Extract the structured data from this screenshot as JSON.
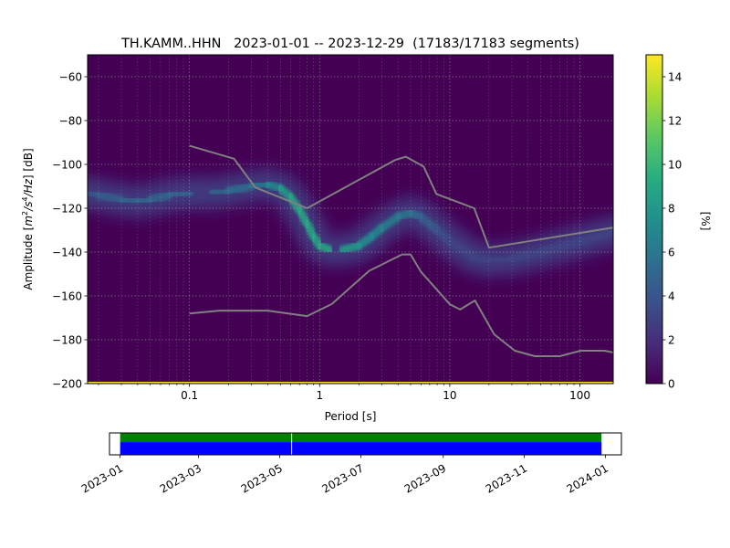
{
  "chart_data": [
    {
      "type": "heatmap",
      "title": "TH.KAMM..HHN   2023-01-01 -- 2023-12-29  (17183/17183 segments)",
      "xlabel": "Period [s]",
      "ylabel_parts": {
        "pre": "Amplitude [",
        "m": "m",
        "exp2": "2",
        "s": "/s",
        "exp4": "4",
        "hz": "/Hz",
        "post": "] [dB]"
      },
      "xscale": "log",
      "xlim": [
        0.0165,
        180
      ],
      "ylim": [
        -200,
        -50
      ],
      "x_ticks": [
        {
          "value": 0.1,
          "label": "0.1"
        },
        {
          "value": 1,
          "label": "1"
        },
        {
          "value": 10,
          "label": "10"
        },
        {
          "value": 100,
          "label": "100"
        }
      ],
      "y_ticks": [
        {
          "value": -60,
          "label": "−60"
        },
        {
          "value": -80,
          "label": "−80"
        },
        {
          "value": -100,
          "label": "−100"
        },
        {
          "value": -120,
          "label": "−120"
        },
        {
          "value": -140,
          "label": "−140"
        },
        {
          "value": -160,
          "label": "−160"
        },
        {
          "value": -180,
          "label": "−180"
        },
        {
          "value": -200,
          "label": "−200"
        }
      ],
      "grid": true,
      "colormap": "viridis",
      "colorbar": {
        "label": "[%]",
        "range": [
          0,
          15
        ],
        "ticks": [
          {
            "value": 0,
            "label": "0"
          },
          {
            "value": 2,
            "label": "2"
          },
          {
            "value": 4,
            "label": "4"
          },
          {
            "value": 6,
            "label": "6"
          },
          {
            "value": 8,
            "label": "8"
          },
          {
            "value": 10,
            "label": "10"
          },
          {
            "value": 12,
            "label": "12"
          },
          {
            "value": 14,
            "label": "14"
          }
        ]
      },
      "density_ridge": {
        "x": [
          0.0165,
          0.02,
          0.03,
          0.04,
          0.05,
          0.07,
          0.1,
          0.15,
          0.2,
          0.3,
          0.4,
          0.5,
          0.6,
          0.7,
          0.8,
          0.9,
          1.0,
          1.2,
          1.5,
          2.0,
          2.5,
          3.0,
          4.0,
          5.0,
          6.0,
          8.0,
          10,
          15,
          20,
          30,
          50,
          100,
          180
        ],
        "y": [
          -113,
          -114,
          -116,
          -117,
          -116,
          -114,
          -113,
          -113,
          -112,
          -110,
          -109,
          -111,
          -115,
          -121,
          -127,
          -133,
          -137,
          -139,
          -139,
          -137,
          -133,
          -129,
          -124,
          -122,
          -124,
          -130,
          -135,
          -142,
          -144,
          -143,
          -140,
          -135,
          -131
        ],
        "peak_percent": [
          4,
          4,
          5,
          5,
          5,
          5,
          5,
          5,
          5,
          6,
          6,
          8,
          9,
          9,
          9,
          9,
          9,
          9,
          9,
          8,
          7,
          7,
          6,
          6,
          5,
          4,
          3,
          3,
          3,
          3,
          3,
          3,
          3
        ]
      },
      "noise_model_high": {
        "x": [
          0.1,
          0.22,
          0.32,
          0.8,
          3.8,
          4.6,
          6.3,
          7.9,
          15.4,
          20,
          354.8
        ],
        "y": [
          -91.5,
          -97.4,
          -110.5,
          -120,
          -98,
          -96.5,
          -101,
          -113.5,
          -120,
          -138,
          -126
        ]
      },
      "noise_model_low": {
        "x": [
          0.1,
          0.17,
          0.4,
          0.8,
          1.24,
          2.4,
          4.3,
          5.0,
          6.0,
          10,
          12,
          15.6,
          21.9,
          31.6,
          45,
          70,
          101,
          154,
          180
        ],
        "y": [
          -168,
          -166.7,
          -166.7,
          -169.2,
          -163.7,
          -148.6,
          -141.1,
          -141.1,
          -149,
          -163.8,
          -166.2,
          -162.1,
          -177.5,
          -185,
          -187.5,
          -187.5,
          -185,
          -185,
          -185.8
        ]
      },
      "lowest_row_percent": 15
    },
    {
      "type": "timeline",
      "xlim": [
        "2022-12-24",
        "2024-01-13"
      ],
      "x_ticks": [
        "2023-01",
        "2023-03",
        "2023-05",
        "2023-07",
        "2023-09",
        "2023-11",
        "2024-01"
      ],
      "coverage": [
        {
          "start": "2023-01-01",
          "end": "2023-12-29",
          "color": "#008000",
          "row": "upper"
        },
        {
          "start": "2023-01-01",
          "end": "2023-12-29",
          "color": "#0000ff",
          "row": "lower"
        }
      ],
      "gap_marker": "2023-05-10"
    }
  ]
}
